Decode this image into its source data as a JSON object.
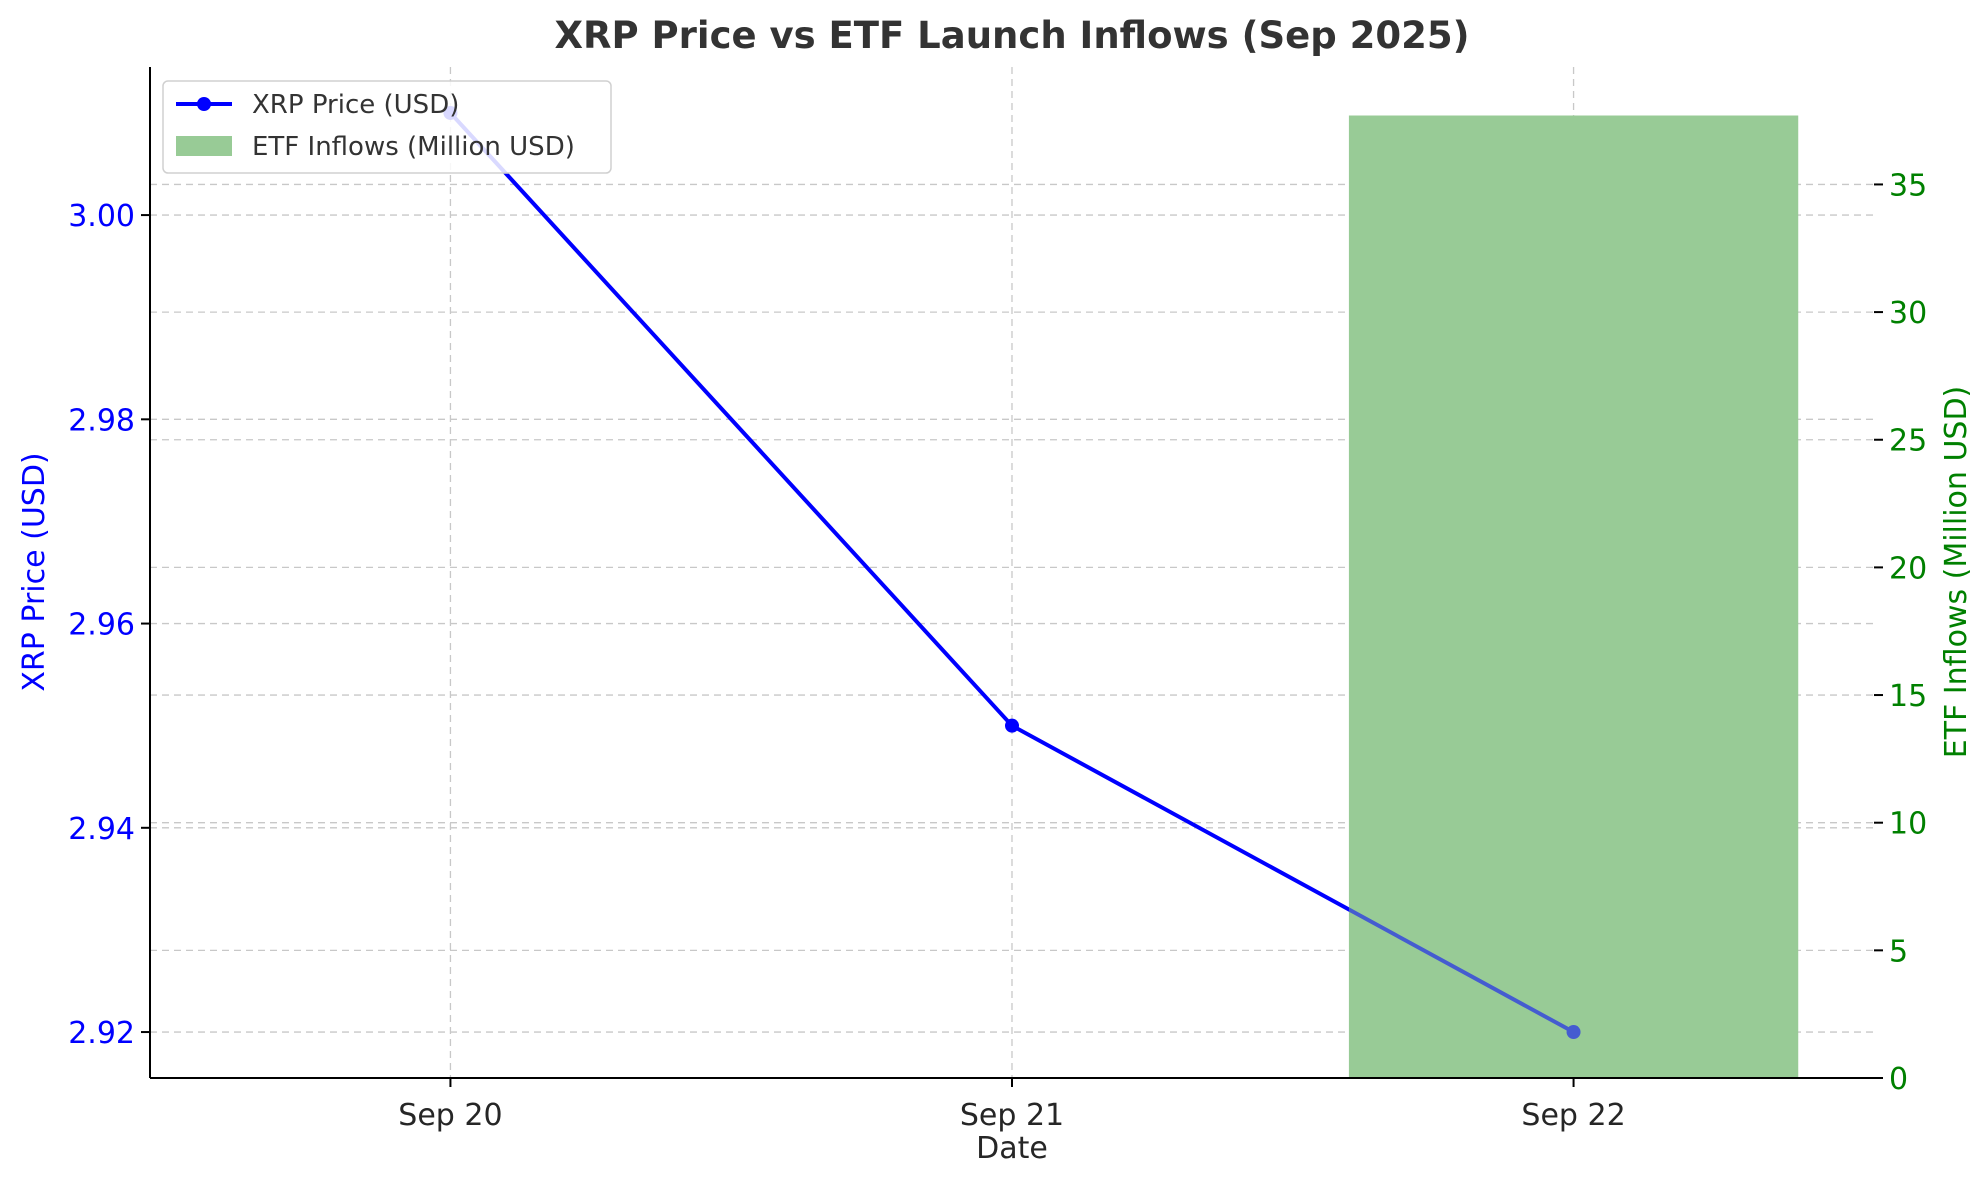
{
  "chart_data": {
    "type": "line",
    "title": "XRP Price vs ETF Launch Inflows (Sep 2025)",
    "xlabel": "Date",
    "categories": [
      "Sep 20",
      "Sep 21",
      "Sep 22"
    ],
    "series": [
      {
        "name": "XRP Price (USD)",
        "kind": "line",
        "axis": "left",
        "color": "#0000ff",
        "values": [
          3.01,
          2.95,
          2.92
        ]
      },
      {
        "name": "ETF Inflows (Million USD)",
        "kind": "bar",
        "axis": "right",
        "color": "#98cb96",
        "values": [
          null,
          null,
          37.7
        ]
      }
    ],
    "y_left": {
      "label": "XRP Price (USD)",
      "color": "#0000ff",
      "range": [
        2.9155,
        3.0145
      ],
      "ticks": [
        2.92,
        2.94,
        2.96,
        2.98,
        3.0
      ],
      "tick_labels": [
        "2.92",
        "2.94",
        "2.96",
        "2.98",
        "3.00"
      ]
    },
    "y_right": {
      "label": "ETF Inflows (Million USD)",
      "color": "#008000",
      "range": [
        0,
        39.6
      ],
      "ticks": [
        0,
        5,
        10,
        15,
        20,
        25,
        30,
        35
      ],
      "tick_labels": [
        "0",
        "5",
        "10",
        "15",
        "20",
        "25",
        "30",
        "35"
      ]
    },
    "x_range": [
      -0.535,
      2.535
    ],
    "bar_width": 0.8,
    "grid": true,
    "legend_position": "top-left"
  }
}
